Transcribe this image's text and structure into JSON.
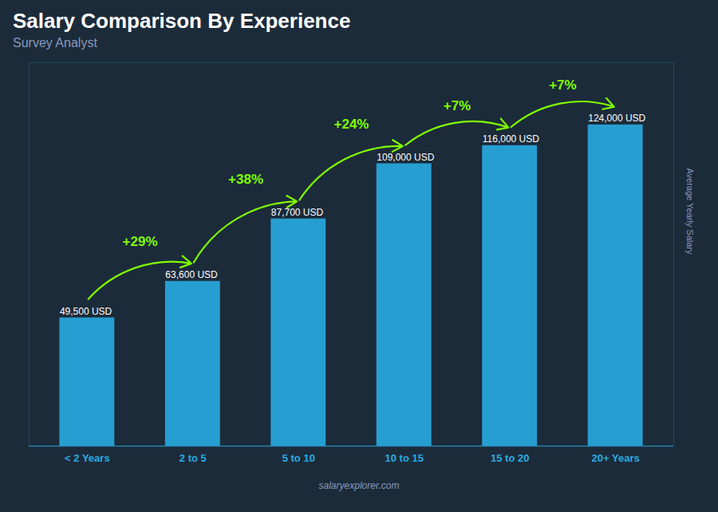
{
  "chart_data": {
    "type": "bar",
    "title": "Salary Comparison By Experience",
    "subtitle": "Survey Analyst",
    "ylabel": "Average Yearly Salary",
    "footer": "salaryexplorer.com",
    "categories": [
      "< 2 Years",
      "2 to 5",
      "5 to 10",
      "10 to 15",
      "15 to 20",
      "20+ Years"
    ],
    "values": [
      49500,
      63600,
      87700,
      109000,
      116000,
      124000
    ],
    "value_labels": [
      "49,500 USD",
      "63,600 USD",
      "87,700 USD",
      "109,000 USD",
      "116,000 USD",
      "124,000 USD"
    ],
    "data_labels": true,
    "color": "#29ABE2",
    "annotations": [
      {
        "from": "< 2 Years",
        "to": "2 to 5",
        "text": "+29%",
        "color": "#7FFF00"
      },
      {
        "from": "2 to 5",
        "to": "5 to 10",
        "text": "+38%",
        "color": "#7FFF00"
      },
      {
        "from": "5 to 10",
        "to": "10 to 15",
        "text": "+24%",
        "color": "#7FFF00"
      },
      {
        "from": "10 to 15",
        "to": "15 to 20",
        "text": "+7%",
        "color": "#7FFF00"
      },
      {
        "from": "15 to 20",
        "to": "20+ Years",
        "text": "+7%",
        "color": "#7FFF00"
      }
    ],
    "ylim": [
      0,
      148000
    ],
    "yticks": [],
    "tick_labels": "x",
    "grid": false
  }
}
